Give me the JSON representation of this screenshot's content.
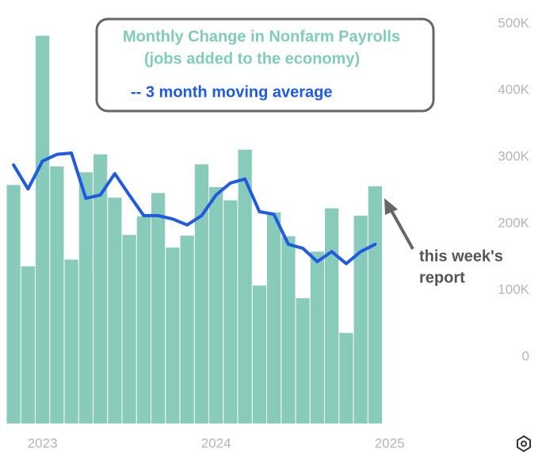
{
  "chart_data": {
    "type": "bar",
    "title": "Monthly Change in Nonfarm Payrolls",
    "subtitle": "(jobs added to the economy)",
    "annotation": [
      "this week's",
      "report"
    ],
    "categories": [
      null,
      null,
      "2023",
      null,
      null,
      null,
      null,
      null,
      null,
      null,
      null,
      null,
      null,
      null,
      "2024",
      null,
      null,
      null,
      null,
      null,
      null,
      null,
      null,
      null,
      null,
      null
    ],
    "xticks": [
      {
        "value": 2,
        "label": "2023"
      },
      {
        "value": 14,
        "label": "2024"
      },
      {
        "value": 26,
        "label": "2025"
      }
    ],
    "series": [
      {
        "color": "#88cbbb",
        "values": [
          258,
          136,
          482,
          286,
          146,
          277,
          304,
          239,
          183,
          211,
          246,
          164,
          182,
          289,
          255,
          235,
          311,
          107,
          217,
          181,
          88,
          158,
          223,
          36,
          212,
          256
        ]
      },
      {
        "name": "-- 3 month moving average",
        "type": "line",
        "color": "#1f5be0",
        "values": [
          288,
          252,
          294,
          304,
          306,
          238,
          243,
          275,
          243,
          212,
          212,
          207,
          198,
          212,
          243,
          261,
          267,
          218,
          214,
          169,
          163,
          143,
          158,
          140,
          158,
          169
        ]
      }
    ],
    "ylim": [
      -100,
      530
    ],
    "yticks": [
      {
        "value": 0,
        "label": "0"
      },
      {
        "value": 100,
        "label": "100K"
      },
      {
        "value": 200,
        "label": "200K"
      },
      {
        "value": 300,
        "label": "300K"
      },
      {
        "value": 400,
        "label": "400K"
      },
      {
        "value": 500,
        "label": "500K"
      }
    ],
    "grid": false
  }
}
